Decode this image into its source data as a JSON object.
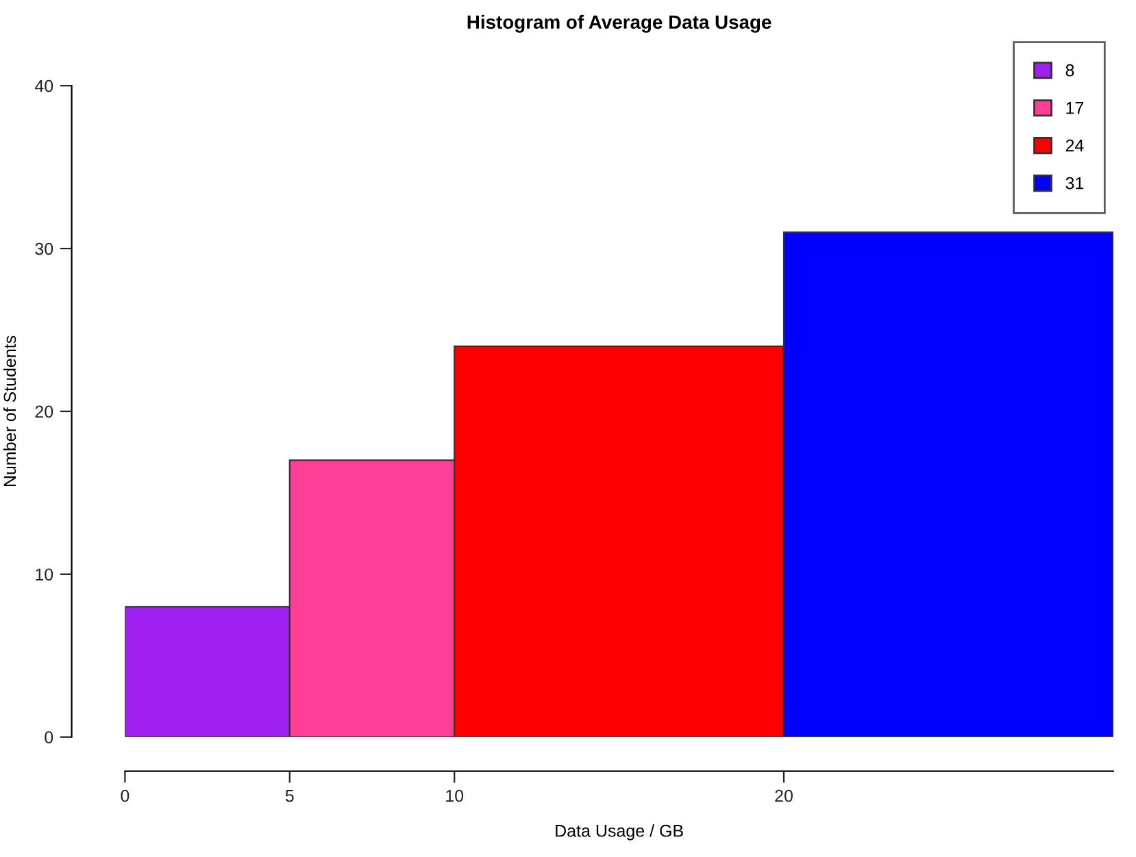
{
  "chart_data": {
    "type": "histogram",
    "title": "Histogram of Average Data Usage",
    "xlabel": "Data Usage / GB",
    "ylabel": "Number of Students",
    "bins": [
      0,
      5,
      10,
      20,
      30
    ],
    "series": [
      {
        "name": "8",
        "color": "#a020f0",
        "values": [
          8,
          null,
          null,
          null
        ]
      },
      {
        "name": "17",
        "color": "#ff3e96",
        "values": [
          null,
          17,
          null,
          null
        ]
      },
      {
        "name": "24",
        "color": "#ff0000",
        "values": [
          null,
          null,
          24,
          null
        ]
      },
      {
        "name": "31",
        "color": "#0000ff",
        "values": [
          null,
          null,
          null,
          31
        ]
      }
    ],
    "xlim": [
      0,
      30
    ],
    "xticks": [
      0,
      5,
      10,
      20
    ],
    "ylim": [
      0,
      40
    ],
    "yticks": [
      0,
      10,
      20,
      30,
      40
    ],
    "grid": false,
    "legend": "top right"
  }
}
